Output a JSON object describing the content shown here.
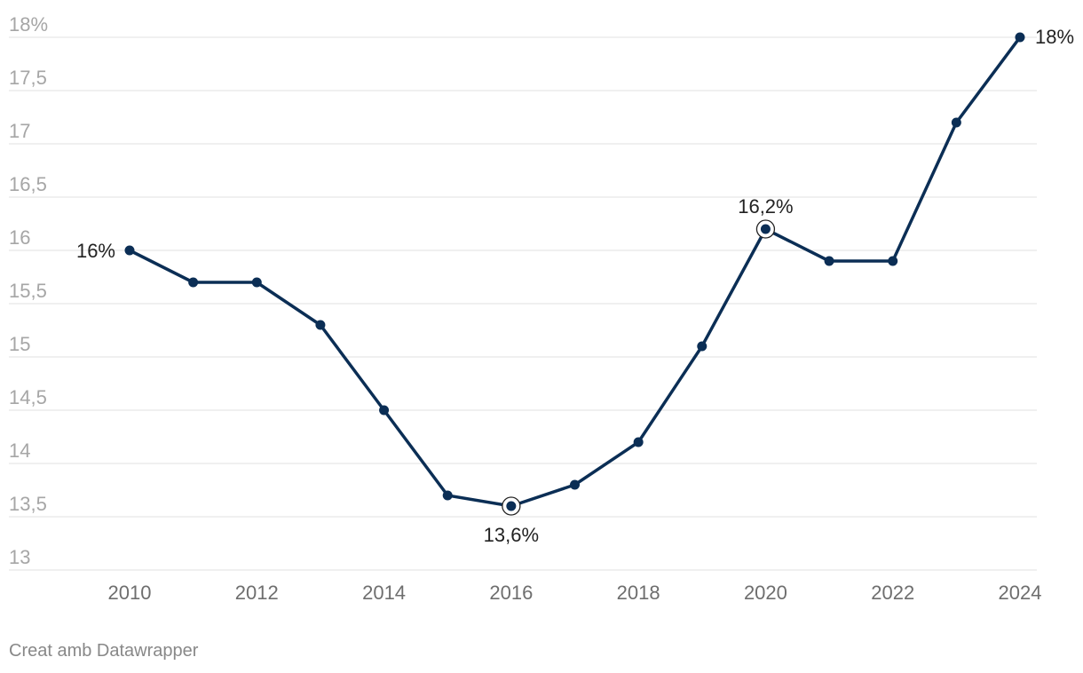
{
  "chart_data": {
    "type": "line",
    "x": [
      2010,
      2011,
      2012,
      2013,
      2014,
      2015,
      2016,
      2017,
      2018,
      2019,
      2020,
      2021,
      2022,
      2023,
      2024
    ],
    "series": [
      {
        "values": [
          16.0,
          15.7,
          15.7,
          15.3,
          14.5,
          13.7,
          13.6,
          13.8,
          14.2,
          15.1,
          16.2,
          15.9,
          15.9,
          17.2,
          18.0
        ]
      }
    ],
    "ylim": [
      13,
      18
    ],
    "y_ticks": [
      13,
      13.5,
      14,
      14.5,
      15,
      15.5,
      16,
      16.5,
      17,
      17.5,
      18
    ],
    "y_tick_labels": [
      "13",
      "13,5",
      "14",
      "14,5",
      "15",
      "15,5",
      "16",
      "16,5",
      "17",
      "17,5",
      "18%"
    ],
    "x_ticks": [
      2010,
      2012,
      2014,
      2016,
      2018,
      2020,
      2022,
      2024
    ],
    "x_tick_labels": [
      "2010",
      "2012",
      "2014",
      "2016",
      "2018",
      "2020",
      "2022",
      "2024"
    ],
    "data_labels": [
      {
        "x": 2010,
        "y": 16.0,
        "text": "16%",
        "position": "left"
      },
      {
        "x": 2016,
        "y": 13.6,
        "text": "13,6%",
        "position": "below",
        "highlight": true
      },
      {
        "x": 2020,
        "y": 16.2,
        "text": "16,2%",
        "position": "above",
        "highlight": true
      },
      {
        "x": 2024,
        "y": 18.0,
        "text": "18%",
        "position": "right"
      }
    ],
    "grid": true,
    "colors": {
      "line": "#0b2e55",
      "grid": "#e0e0e0",
      "tick_label": "#a6a6a6",
      "x_tick_label": "#6e6e6e",
      "data_label": "#222222"
    }
  },
  "footer": {
    "credit": "Creat amb Datawrapper"
  }
}
